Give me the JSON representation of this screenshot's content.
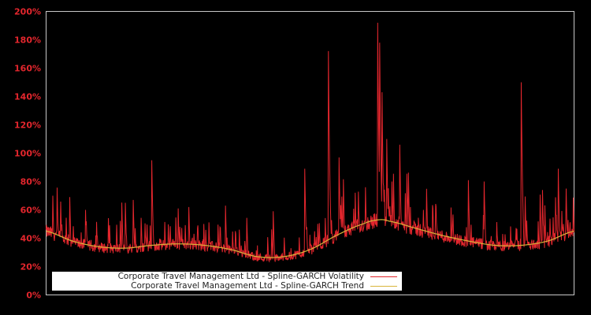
{
  "chart_data": {
    "type": "line",
    "title": "",
    "xlabel": "",
    "ylabel": "",
    "ylim": [
      0,
      200
    ],
    "y_ticks": [
      "0%",
      "20%",
      "40%",
      "60%",
      "80%",
      "100%",
      "120%",
      "140%",
      "160%",
      "180%",
      "200%"
    ],
    "grid": false,
    "legend_position": "lower left",
    "background": "#000000",
    "axis_color": "#c8c8c8",
    "tick_label_color": "#e3262d",
    "series": [
      {
        "name": "Corporate Travel Management Ltd - Spline-GARCH Volatility",
        "color": "#e3262d",
        "description": "daily volatility with spikes",
        "notable_spikes_x_frac_value": [
          [
            0.013,
            70
          ],
          [
            0.045,
            69
          ],
          [
            0.075,
            60
          ],
          [
            0.15,
            65
          ],
          [
            0.165,
            67
          ],
          [
            0.2,
            95
          ],
          [
            0.25,
            61
          ],
          [
            0.27,
            62
          ],
          [
            0.34,
            63
          ],
          [
            0.43,
            59
          ],
          [
            0.49,
            89
          ],
          [
            0.535,
            172
          ],
          [
            0.555,
            97
          ],
          [
            0.605,
            76
          ],
          [
            0.628,
            192
          ],
          [
            0.632,
            178
          ],
          [
            0.636,
            143
          ],
          [
            0.645,
            110
          ],
          [
            0.655,
            80
          ],
          [
            0.67,
            106
          ],
          [
            0.69,
            62
          ],
          [
            0.8,
            81
          ],
          [
            0.83,
            80
          ],
          [
            0.9,
            150
          ],
          [
            0.94,
            74
          ],
          [
            0.97,
            89
          ],
          [
            0.985,
            75
          ]
        ]
      },
      {
        "name": "Corporate Travel Management Ltd - Spline-GARCH Trend",
        "color": "#d9b43a",
        "x_frac": [
          0,
          0.05,
          0.1,
          0.15,
          0.2,
          0.25,
          0.3,
          0.35,
          0.4,
          0.45,
          0.5,
          0.55,
          0.6,
          0.63,
          0.65,
          0.7,
          0.75,
          0.8,
          0.85,
          0.9,
          0.95,
          1.0
        ],
        "values": [
          45,
          38,
          34,
          33,
          35,
          36,
          35,
          32,
          27,
          27,
          32,
          42,
          50,
          53,
          52,
          47,
          42,
          38,
          35,
          35,
          38,
          45
        ]
      }
    ]
  },
  "legend": {
    "items": [
      {
        "label": "Corporate Travel Management Ltd - Spline-GARCH Volatility",
        "color": "#e3262d"
      },
      {
        "label": "Corporate Travel Management Ltd - Spline-GARCH Trend",
        "color": "#d9b43a"
      }
    ]
  }
}
